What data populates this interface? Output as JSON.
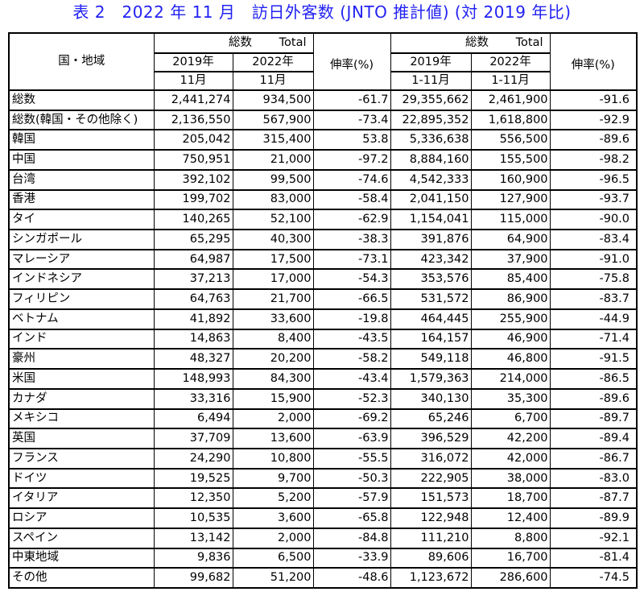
{
  "title": "表 2　2022 年 11 月　訪日外客数 (JNTO 推計値) (対 2019 年比)",
  "accent_color": "#2222f3",
  "table": {
    "header": {
      "country_region": "国・地域",
      "group_total_month": "総数　　 Total",
      "group_total_cum": "総数　　 Total",
      "col_2019": "2019年",
      "col_2022": "2022年",
      "sub_month": "11月",
      "sub_cum": "1-11月",
      "growth_rate": "伸率(%)"
    },
    "rows": [
      {
        "name": "総数",
        "v2019_11": "2,441,274",
        "v2022_11": "934,500",
        "rate_11": "-61.7",
        "v2019_cum": "29,355,662",
        "v2022_cum": "2,461,900",
        "rate_cum": "-91.6"
      },
      {
        "name": "総数(韓国・その他除く)",
        "v2019_11": "2,136,550",
        "v2022_11": "567,900",
        "rate_11": "-73.4",
        "v2019_cum": "22,895,352",
        "v2022_cum": "1,618,800",
        "rate_cum": "-92.9"
      },
      {
        "name": "韓国",
        "v2019_11": "205,042",
        "v2022_11": "315,400",
        "rate_11": "53.8",
        "v2019_cum": "5,336,638",
        "v2022_cum": "556,500",
        "rate_cum": "-89.6"
      },
      {
        "name": "中国",
        "v2019_11": "750,951",
        "v2022_11": "21,000",
        "rate_11": "-97.2",
        "v2019_cum": "8,884,160",
        "v2022_cum": "155,500",
        "rate_cum": "-98.2"
      },
      {
        "name": "台湾",
        "v2019_11": "392,102",
        "v2022_11": "99,500",
        "rate_11": "-74.6",
        "v2019_cum": "4,542,333",
        "v2022_cum": "160,900",
        "rate_cum": "-96.5"
      },
      {
        "name": "香港",
        "v2019_11": "199,702",
        "v2022_11": "83,000",
        "rate_11": "-58.4",
        "v2019_cum": "2,041,150",
        "v2022_cum": "127,900",
        "rate_cum": "-93.7"
      },
      {
        "name": "タイ",
        "v2019_11": "140,265",
        "v2022_11": "52,100",
        "rate_11": "-62.9",
        "v2019_cum": "1,154,041",
        "v2022_cum": "115,000",
        "rate_cum": "-90.0"
      },
      {
        "name": "シンガポール",
        "v2019_11": "65,295",
        "v2022_11": "40,300",
        "rate_11": "-38.3",
        "v2019_cum": "391,876",
        "v2022_cum": "64,900",
        "rate_cum": "-83.4"
      },
      {
        "name": "マレーシア",
        "v2019_11": "64,987",
        "v2022_11": "17,500",
        "rate_11": "-73.1",
        "v2019_cum": "423,342",
        "v2022_cum": "37,900",
        "rate_cum": "-91.0"
      },
      {
        "name": "インドネシア",
        "v2019_11": "37,213",
        "v2022_11": "17,000",
        "rate_11": "-54.3",
        "v2019_cum": "353,576",
        "v2022_cum": "85,400",
        "rate_cum": "-75.8"
      },
      {
        "name": "フィリピン",
        "v2019_11": "64,763",
        "v2022_11": "21,700",
        "rate_11": "-66.5",
        "v2019_cum": "531,572",
        "v2022_cum": "86,900",
        "rate_cum": "-83.7"
      },
      {
        "name": "ベトナム",
        "v2019_11": "41,892",
        "v2022_11": "33,600",
        "rate_11": "-19.8",
        "v2019_cum": "464,445",
        "v2022_cum": "255,900",
        "rate_cum": "-44.9"
      },
      {
        "name": "インド",
        "v2019_11": "14,863",
        "v2022_11": "8,400",
        "rate_11": "-43.5",
        "v2019_cum": "164,157",
        "v2022_cum": "46,900",
        "rate_cum": "-71.4"
      },
      {
        "name": "豪州",
        "v2019_11": "48,327",
        "v2022_11": "20,200",
        "rate_11": "-58.2",
        "v2019_cum": "549,118",
        "v2022_cum": "46,800",
        "rate_cum": "-91.5"
      },
      {
        "name": "米国",
        "v2019_11": "148,993",
        "v2022_11": "84,300",
        "rate_11": "-43.4",
        "v2019_cum": "1,579,363",
        "v2022_cum": "214,000",
        "rate_cum": "-86.5"
      },
      {
        "name": "カナダ",
        "v2019_11": "33,316",
        "v2022_11": "15,900",
        "rate_11": "-52.3",
        "v2019_cum": "340,130",
        "v2022_cum": "35,300",
        "rate_cum": "-89.6"
      },
      {
        "name": "メキシコ",
        "v2019_11": "6,494",
        "v2022_11": "2,000",
        "rate_11": "-69.2",
        "v2019_cum": "65,246",
        "v2022_cum": "6,700",
        "rate_cum": "-89.7"
      },
      {
        "name": "英国",
        "v2019_11": "37,709",
        "v2022_11": "13,600",
        "rate_11": "-63.9",
        "v2019_cum": "396,529",
        "v2022_cum": "42,200",
        "rate_cum": "-89.4"
      },
      {
        "name": "フランス",
        "v2019_11": "24,290",
        "v2022_11": "10,800",
        "rate_11": "-55.5",
        "v2019_cum": "316,072",
        "v2022_cum": "42,000",
        "rate_cum": "-86.7"
      },
      {
        "name": "ドイツ",
        "v2019_11": "19,525",
        "v2022_11": "9,700",
        "rate_11": "-50.3",
        "v2019_cum": "222,905",
        "v2022_cum": "38,000",
        "rate_cum": "-83.0"
      },
      {
        "name": "イタリア",
        "v2019_11": "12,350",
        "v2022_11": "5,200",
        "rate_11": "-57.9",
        "v2019_cum": "151,573",
        "v2022_cum": "18,700",
        "rate_cum": "-87.7"
      },
      {
        "name": "ロシア",
        "v2019_11": "10,535",
        "v2022_11": "3,600",
        "rate_11": "-65.8",
        "v2019_cum": "122,948",
        "v2022_cum": "12,400",
        "rate_cum": "-89.9"
      },
      {
        "name": "スペイン",
        "v2019_11": "13,142",
        "v2022_11": "2,000",
        "rate_11": "-84.8",
        "v2019_cum": "111,210",
        "v2022_cum": "8,800",
        "rate_cum": "-92.1"
      },
      {
        "name": "中東地域",
        "v2019_11": "9,836",
        "v2022_11": "6,500",
        "rate_11": "-33.9",
        "v2019_cum": "89,606",
        "v2022_cum": "16,700",
        "rate_cum": "-81.4"
      },
      {
        "name": "その他",
        "v2019_11": "99,682",
        "v2022_11": "51,200",
        "rate_11": "-48.6",
        "v2019_cum": "1,123,672",
        "v2022_cum": "286,600",
        "rate_cum": "-74.5"
      }
    ]
  }
}
